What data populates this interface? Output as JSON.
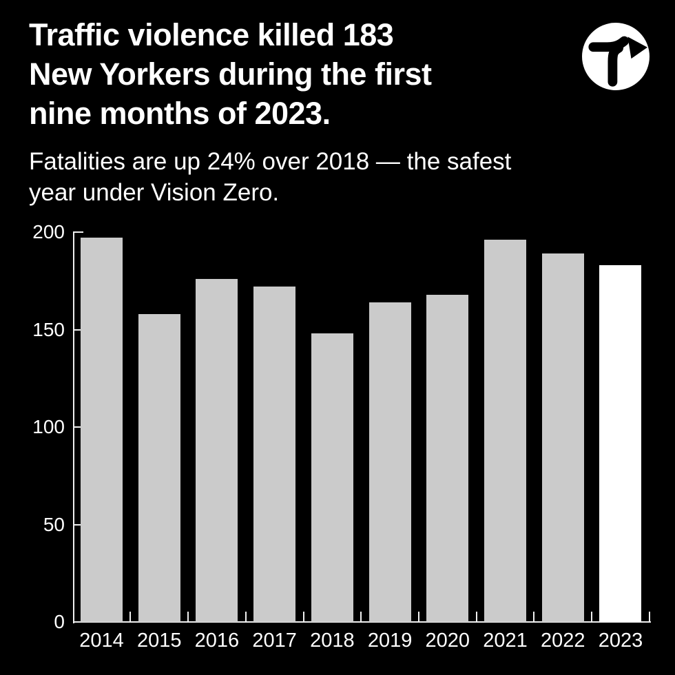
{
  "header": {
    "title_lines": [
      "Traffic violence killed 183",
      "New Yorkers during the first",
      "nine months of 2023."
    ],
    "subtitle_lines": [
      "Fatalities are up 24% over 2018 — the safest",
      "year under Vision Zero."
    ],
    "logo_name": "transportation-alternatives-turn-arrow-logo"
  },
  "colors": {
    "background": "#000000",
    "text": "#ffffff",
    "bar": "#cbcbcb",
    "highlight_bar": "#ffffff",
    "axis": "#f0f0f0"
  },
  "chart_data": {
    "type": "bar",
    "categories": [
      "2014",
      "2015",
      "2016",
      "2017",
      "2018",
      "2019",
      "2020",
      "2021",
      "2022",
      "2023"
    ],
    "values": [
      197,
      158,
      176,
      172,
      148,
      164,
      168,
      196,
      189,
      183
    ],
    "highlight_category": "2023",
    "title": "Traffic violence killed 183 New Yorkers during the first nine months of 2023.",
    "subtitle": "Fatalities are up 24% over 2018 — the safest year under Vision Zero.",
    "xlabel": "",
    "ylabel": "",
    "y_ticks": [
      0,
      50,
      100,
      150,
      200
    ],
    "ylim": [
      0,
      200
    ],
    "grid": false,
    "legend": false
  }
}
